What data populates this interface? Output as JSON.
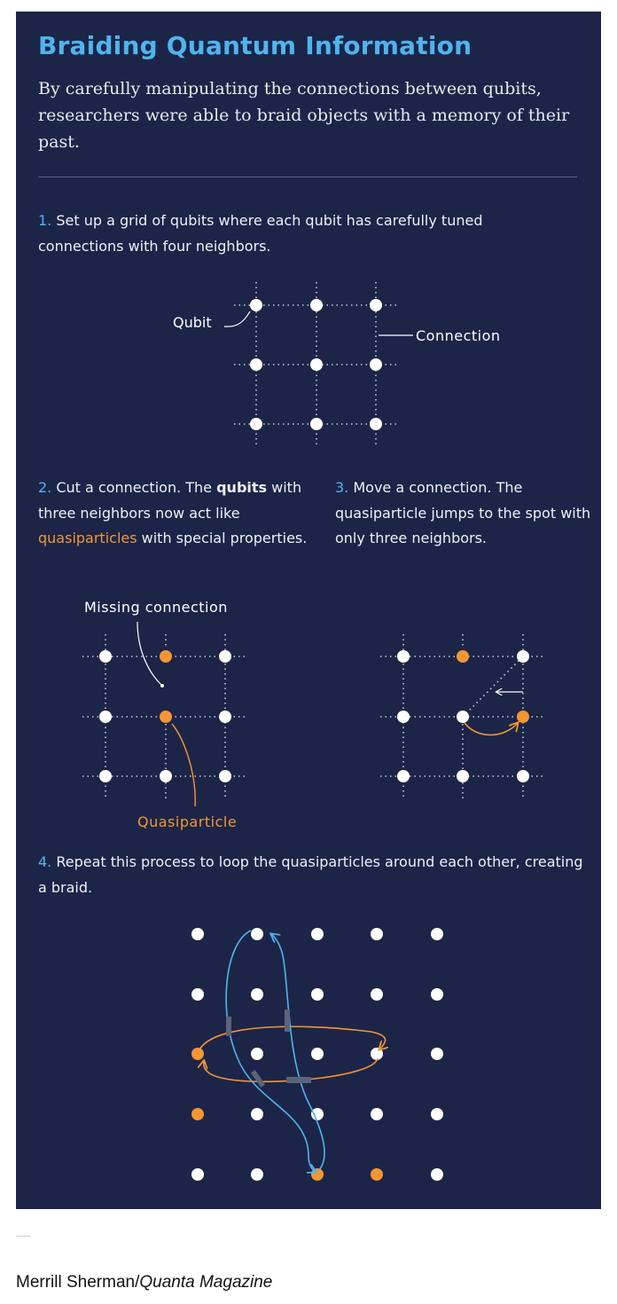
{
  "title": "Braiding Quantum Information",
  "subtitle": "By carefully manipulating the connections between qubits, researchers were able to braid objects with a memory of their past.",
  "steps": {
    "s1": {
      "num": "1.",
      "text": "Set up a grid of qubits where each qubit has carefully tuned connections with four neighbors."
    },
    "s2": {
      "num": "2.",
      "pre": "Cut a connection. The ",
      "bold": "qubits",
      "mid": " with three neighbors now act like ",
      "highlight": "quasiparticles",
      "post": " with special properties."
    },
    "s3": {
      "num": "3.",
      "text": "Move a connection. The quasiparticle jumps to the spot with only three neighbors."
    },
    "s4": {
      "num": "4.",
      "text": "Repeat this process to loop the quasiparticles around each other, creating a braid."
    }
  },
  "labels": {
    "qubit": "Qubit",
    "connection": "Connection",
    "missing_connection": "Missing connection",
    "quasiparticle": "Quasiparticle"
  },
  "colors": {
    "background": "#1c2548",
    "title": "#4fb4ee",
    "quasiparticle": "#f39634",
    "qubit": "#ffffff",
    "braid_path": "#4fb4ee"
  },
  "credit": {
    "author": "Merrill Sherman/",
    "publication": "Quanta Magazine"
  }
}
